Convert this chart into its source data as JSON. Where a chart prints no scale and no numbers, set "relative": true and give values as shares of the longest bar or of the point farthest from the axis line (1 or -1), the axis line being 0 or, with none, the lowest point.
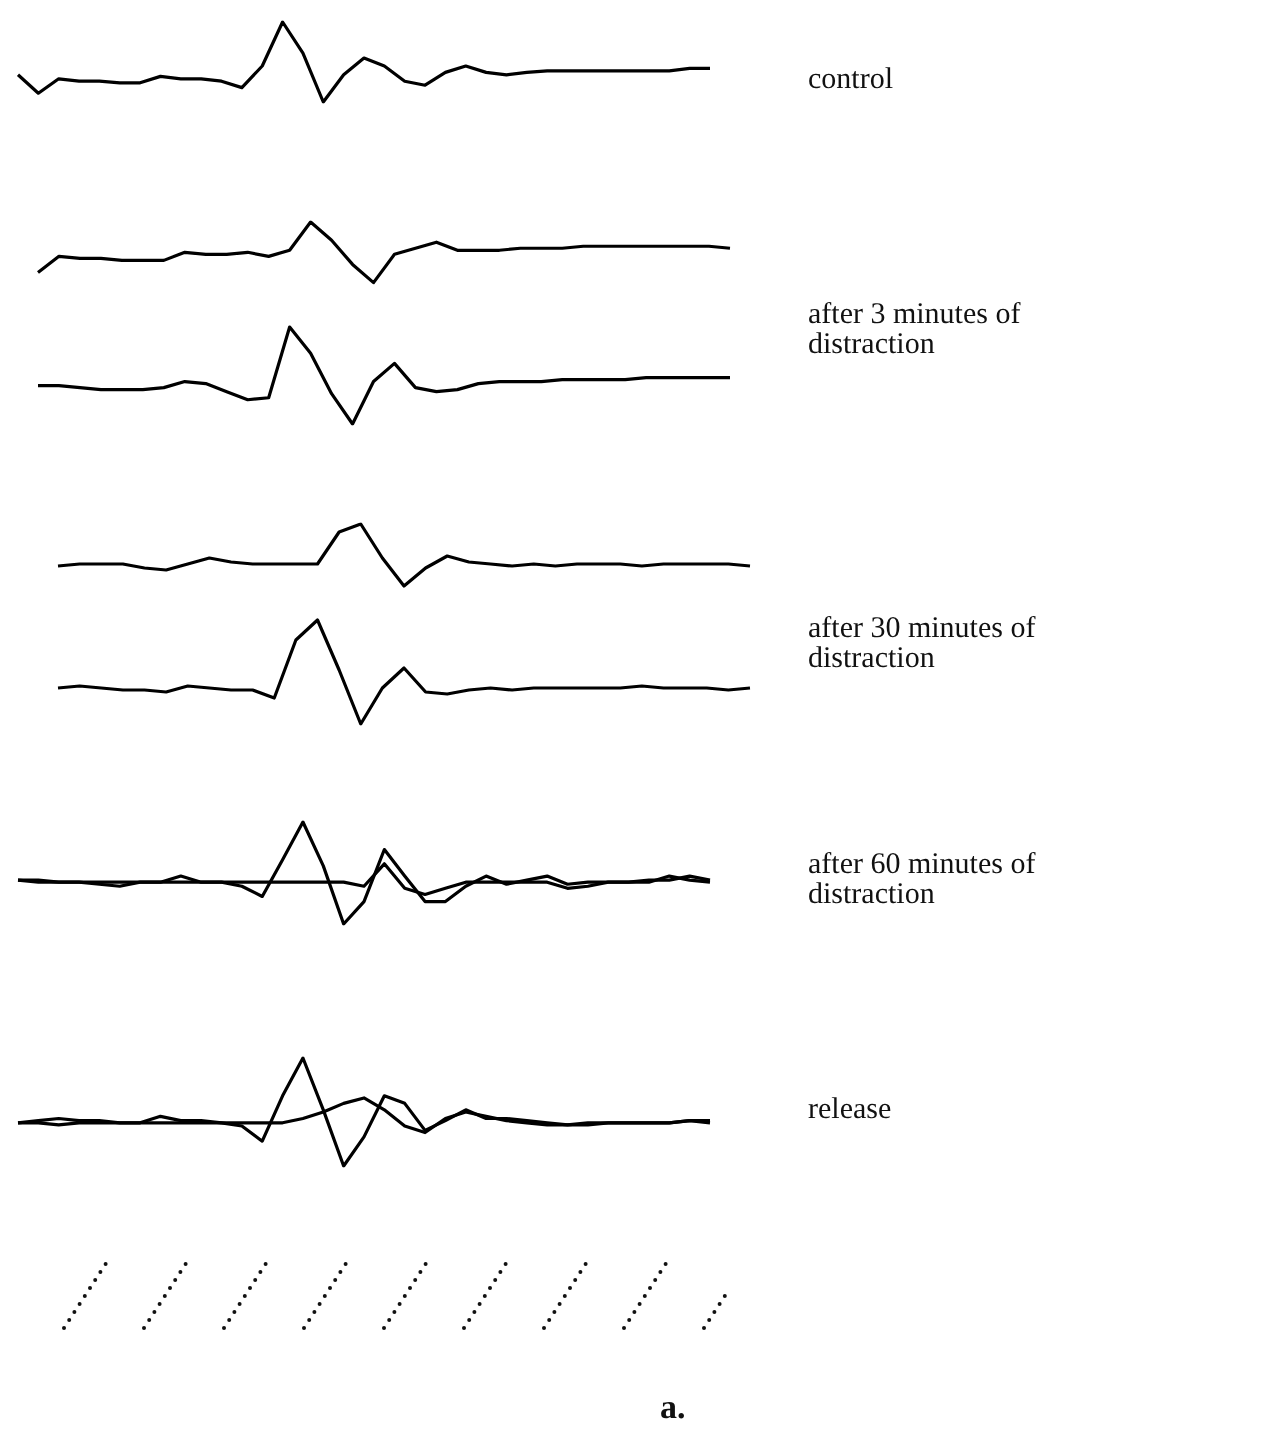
{
  "chart_data": [
    {
      "type": "line",
      "annotations": [
        "control"
      ],
      "relative": true,
      "categories": [
        null,
        null,
        null,
        null,
        null,
        null,
        null,
        null,
        null,
        null,
        null,
        null,
        null,
        null,
        null,
        null,
        null,
        null,
        null,
        null,
        null,
        null,
        null,
        null,
        null,
        null,
        null,
        null,
        null,
        null,
        null,
        null,
        null,
        null,
        null
      ],
      "series": [
        {
          "color": "#000000",
          "values": [
            0.34,
            0.11,
            0.29,
            0.26,
            0.26,
            0.24,
            0.24,
            0.32,
            0.29,
            0.29,
            0.26,
            0.18,
            0.45,
            1,
            0.61,
            0,
            0.34,
            0.55,
            0.45,
            0.26,
            0.21,
            0.37,
            0.45,
            0.37,
            0.34,
            0.37,
            0.39,
            0.39,
            0.39,
            0.39,
            0.39,
            0.39,
            0.39,
            0.42,
            0.42
          ]
        }
      ]
    },
    {
      "type": "line",
      "annotations": [
        "after 3 minutes of distraction"
      ],
      "relative": true,
      "categories": [
        null,
        null,
        null,
        null,
        null,
        null,
        null,
        null,
        null,
        null,
        null,
        null,
        null,
        null,
        null,
        null,
        null,
        null,
        null,
        null,
        null,
        null,
        null,
        null,
        null,
        null,
        null,
        null,
        null,
        null,
        null,
        null,
        null,
        null
      ],
      "series": [
        {
          "color": "#000000",
          "values": [
            0.75,
            0.83,
            0.82,
            0.82,
            0.81,
            0.81,
            0.81,
            0.85,
            0.84,
            0.84,
            0.85,
            0.83,
            0.86,
            1,
            0.91,
            0.79,
            0.7,
            0.84,
            0.87,
            0.9,
            0.86,
            0.86,
            0.86,
            0.87,
            0.87,
            0.87,
            0.88,
            0.88,
            0.88,
            0.88,
            0.88,
            0.88,
            0.88,
            0.87
          ]
        },
        {
          "color": "#000000",
          "values": [
            0.19,
            0.19,
            0.18,
            0.17,
            0.17,
            0.17,
            0.18,
            0.21,
            0.2,
            0.16,
            0.12,
            0.13,
            0.48,
            0.35,
            0.15,
            0,
            0.21,
            0.3,
            0.18,
            0.16,
            0.17,
            0.2,
            0.21,
            0.21,
            0.21,
            0.22,
            0.22,
            0.22,
            0.22,
            0.23,
            0.23,
            0.23,
            0.23,
            0.23
          ]
        }
      ]
    },
    {
      "type": "line",
      "annotations": [
        "after 30 minutes of distraction"
      ],
      "relative": true,
      "categories": [
        null,
        null,
        null,
        null,
        null,
        null,
        null,
        null,
        null,
        null,
        null,
        null,
        null,
        null,
        null,
        null,
        null,
        null,
        null,
        null,
        null,
        null,
        null,
        null,
        null,
        null,
        null,
        null,
        null,
        null,
        null,
        null,
        null
      ],
      "series": [
        {
          "color": "#000000",
          "values": [
            0.79,
            0.8,
            0.8,
            0.8,
            0.78,
            0.77,
            0.8,
            0.83,
            0.81,
            0.8,
            0.8,
            0.8,
            0.8,
            0.96,
            1,
            0.83,
            0.69,
            0.78,
            0.84,
            0.81,
            0.8,
            0.79,
            0.8,
            0.79,
            0.8,
            0.8,
            0.8,
            0.79,
            0.8,
            0.8,
            0.8,
            0.8,
            0.79
          ]
        },
        {
          "color": "#000000",
          "values": [
            0.18,
            0.19,
            0.18,
            0.17,
            0.17,
            0.16,
            0.19,
            0.18,
            0.17,
            0.17,
            0.13,
            0.42,
            0.52,
            0.27,
            0,
            0.18,
            0.28,
            0.16,
            0.15,
            0.17,
            0.18,
            0.17,
            0.18,
            0.18,
            0.18,
            0.18,
            0.18,
            0.19,
            0.18,
            0.18,
            0.18,
            0.17,
            0.18
          ]
        }
      ]
    },
    {
      "type": "line",
      "annotations": [
        "after 60 minutes of distraction"
      ],
      "relative": true,
      "categories": [
        null,
        null,
        null,
        null,
        null,
        null,
        null,
        null,
        null,
        null,
        null,
        null,
        null,
        null,
        null,
        null,
        null,
        null,
        null,
        null,
        null,
        null,
        null,
        null,
        null,
        null,
        null,
        null,
        null,
        null,
        null,
        null,
        null,
        null,
        null
      ],
      "series": [
        {
          "color": "#000000",
          "values": [
            0.43,
            0.43,
            0.41,
            0.41,
            0.39,
            0.37,
            0.41,
            0.41,
            0.41,
            0.41,
            0.41,
            0.37,
            0.27,
            0.63,
            1,
            0.57,
            0,
            0.22,
            0.73,
            0.47,
            0.22,
            0.22,
            0.37,
            0.47,
            0.39,
            0.43,
            0.47,
            0.39,
            0.41,
            0.41,
            0.41,
            0.43,
            0.43,
            0.47,
            0.43
          ]
        },
        {
          "color": "#000000",
          "values": [
            0.43,
            0.41,
            0.41,
            0.41,
            0.41,
            0.41,
            0.41,
            0.41,
            0.47,
            0.41,
            0.41,
            0.41,
            0.41,
            0.41,
            0.41,
            0.41,
            0.41,
            0.37,
            0.59,
            0.35,
            0.29,
            0.35,
            0.41,
            0.41,
            0.41,
            0.41,
            0.41,
            0.35,
            0.37,
            0.41,
            0.41,
            0.41,
            0.47,
            0.43,
            0.41
          ]
        }
      ]
    },
    {
      "type": "line",
      "relative": true,
      "annotations": [
        "release",
        "a."
      ],
      "categories": [
        null,
        null,
        null,
        null,
        null,
        null,
        null,
        null,
        null,
        null,
        null,
        null,
        null,
        null,
        null,
        null,
        null,
        null,
        null,
        null,
        null,
        null,
        null,
        null,
        null,
        null,
        null,
        null,
        null,
        null,
        null,
        null,
        null,
        null,
        null
      ],
      "series": [
        {
          "color": "#000000",
          "values": [
            0.4,
            0.4,
            0.38,
            0.4,
            0.4,
            0.4,
            0.4,
            0.46,
            0.42,
            0.42,
            0.4,
            0.37,
            0.23,
            0.65,
            1,
            0.52,
            0,
            0.27,
            0.65,
            0.58,
            0.33,
            0.42,
            0.52,
            0.44,
            0.44,
            0.42,
            0.4,
            0.38,
            0.38,
            0.4,
            0.4,
            0.4,
            0.4,
            0.42,
            0.42
          ]
        },
        {
          "color": "#000000",
          "values": [
            0.4,
            0.42,
            0.44,
            0.42,
            0.42,
            0.4,
            0.4,
            0.4,
            0.4,
            0.4,
            0.4,
            0.4,
            0.4,
            0.4,
            0.44,
            0.5,
            0.58,
            0.63,
            0.52,
            0.37,
            0.31,
            0.44,
            0.5,
            0.46,
            0.42,
            0.4,
            0.38,
            0.38,
            0.4,
            0.4,
            0.4,
            0.4,
            0.4,
            0.42,
            0.4
          ]
        }
      ]
    }
  ]
}
